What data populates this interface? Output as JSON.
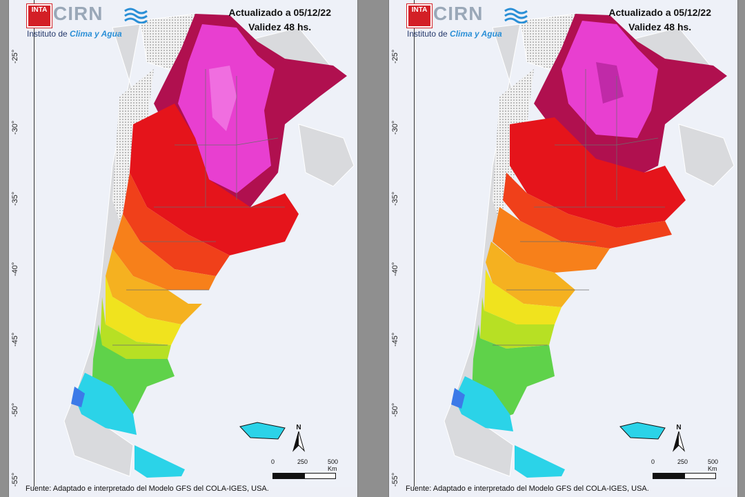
{
  "panels": [
    {
      "header": {
        "line1": "Actualizado a 05/12/22",
        "line2": "Validez 48 hs."
      },
      "logo": {
        "badge": "INTA",
        "brand": "CIRN",
        "institute_prefix": "Instituto de ",
        "institute_accent": "Clima y Agua"
      },
      "latitudes": [
        "-25°",
        "-30°",
        "-35°",
        "-40°",
        "-45°",
        "-50°",
        "-55°"
      ],
      "scale": {
        "start": "0",
        "mid": "250",
        "end": "500 Km"
      },
      "north": "N",
      "footer": "Fuente: Adaptado e interpretado del Modelo GFS del COLA-IGES, USA."
    },
    {
      "header": {
        "line1": "Actualizado a 05/12/22",
        "line2": "Validez 48 hs."
      },
      "logo": {
        "badge": "INTA",
        "brand": "CIRN",
        "institute_prefix": "Instituto de ",
        "institute_accent": "Clima y Agua"
      },
      "latitudes": [
        "-25°",
        "-30°",
        "-35°",
        "-40°",
        "-45°",
        "-50°",
        "-55°"
      ],
      "scale": {
        "start": "0",
        "mid": "250",
        "end": "500 Km"
      },
      "north": "N",
      "footer": "Fuente: Adaptado e interpretado del Modelo GFS del COLA-IGES, USA."
    }
  ],
  "colors": {
    "magenta": "#e83fd0",
    "pink": "#f06ee0",
    "crimson": "#b0104f",
    "red": "#e5141b",
    "orange_red": "#f0401a",
    "orange": "#f7801a",
    "amber": "#f5b120",
    "yellow": "#f0e31e",
    "yellow_green": "#b7e024",
    "green": "#5fd24a",
    "green_light": "#3cc84f",
    "cyan": "#2bd3e8",
    "blue": "#3c7ae8",
    "land_grey": "#d9dadd",
    "ocean": "#eef1f8"
  }
}
